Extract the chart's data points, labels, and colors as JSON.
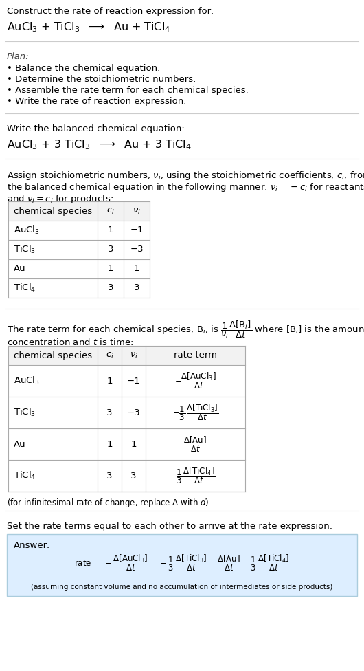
{
  "bg_color": "#ffffff",
  "text_color": "#000000",
  "table_line_color": "#aaaaaa",
  "answer_bg": "#ddeeff",
  "answer_border": "#aaccdd",
  "title_line1": "Construct the rate of reaction expression for:",
  "plan_header": "Plan:",
  "plan_bullets": [
    "• Balance the chemical equation.",
    "• Determine the stoichiometric numbers.",
    "• Assemble the rate term for each chemical species.",
    "• Write the rate of reaction expression."
  ],
  "balanced_header": "Write the balanced chemical equation:",
  "stoich_intro1": "Assign stoichiometric numbers, $\\nu_i$, using the stoichiometric coefficients, $c_i$, from",
  "stoich_intro2": "the balanced chemical equation in the following manner: $\\nu_i = -c_i$ for reactants",
  "stoich_intro3": "and $\\nu_i = c_i$ for products:",
  "table1_headers": [
    "chemical species",
    "$c_i$",
    "$\\nu_i$"
  ],
  "table1_rows": [
    [
      "AuCl$_3$",
      "1",
      "−1"
    ],
    [
      "TiCl$_3$",
      "3",
      "−3"
    ],
    [
      "Au",
      "1",
      "1"
    ],
    [
      "TiCl$_4$",
      "3",
      "3"
    ]
  ],
  "rate_intro1": "The rate term for each chemical species, B$_i$, is $\\dfrac{1}{\\nu_i}\\dfrac{\\Delta[\\mathrm{B}_i]}{\\Delta t}$ where [B$_i$] is the amount",
  "rate_intro2": "concentration and $t$ is time:",
  "table2_headers": [
    "chemical species",
    "$c_i$",
    "$\\nu_i$",
    "rate term"
  ],
  "table2_rows": [
    [
      "AuCl$_3$",
      "1",
      "−1",
      "$-\\dfrac{\\Delta[\\mathrm{AuCl_3}]}{\\Delta t}$"
    ],
    [
      "TiCl$_3$",
      "3",
      "−3",
      "$-\\dfrac{1}{3}\\,\\dfrac{\\Delta[\\mathrm{TiCl_3}]}{\\Delta t}$"
    ],
    [
      "Au",
      "1",
      "1",
      "$\\dfrac{\\Delta[\\mathrm{Au}]}{\\Delta t}$"
    ],
    [
      "TiCl$_4$",
      "3",
      "3",
      "$\\dfrac{1}{3}\\,\\dfrac{\\Delta[\\mathrm{TiCl_4}]}{\\Delta t}$"
    ]
  ],
  "infinitesimal_note": "(for infinitesimal rate of change, replace Δ with $d$)",
  "set_equal_text": "Set the rate terms equal to each other to arrive at the rate expression:",
  "answer_label": "Answer:",
  "answer_note": "(assuming constant volume and no accumulation of intermediates or side products)"
}
